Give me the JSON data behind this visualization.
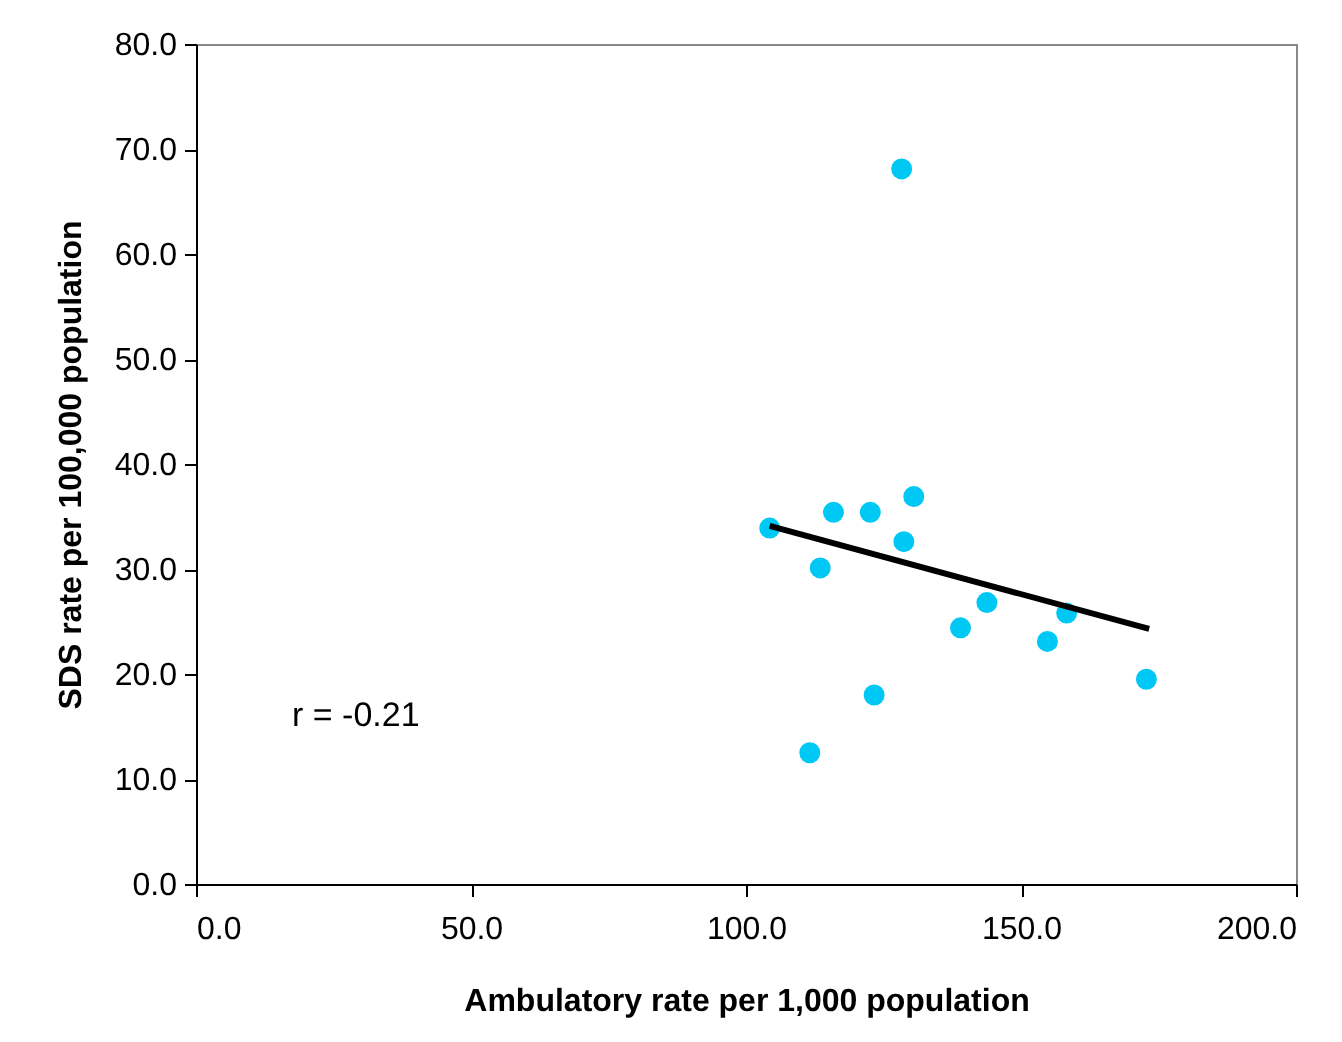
{
  "chart_data": {
    "type": "scatter",
    "xlabel": "Ambulatory rate per 1,000 population",
    "ylabel": "SDS rate per 100,000 population",
    "x": [
      104.3,
      115.9,
      122.6,
      130.5,
      128.7,
      113.5,
      143.8,
      139.0,
      158.3,
      154.8,
      172.8,
      123.3,
      111.6,
      128.3
    ],
    "series": [
      {
        "color": "#00c8f5",
        "marker": "circle",
        "values": [
          33.9,
          35.4,
          35.4,
          36.9,
          32.6,
          30.1,
          26.8,
          24.4,
          25.8,
          23.1,
          19.5,
          18.0,
          12.5,
          68.1
        ]
      },
      {
        "type": "line",
        "color": "#000000",
        "marker": "none",
        "x": [
          104.3,
          173.3
        ],
        "values": [
          34.1,
          24.3
        ]
      }
    ],
    "xlim": [
      0,
      200
    ],
    "xticks": [
      {
        "value": 0,
        "label": "0.0"
      },
      {
        "value": 50,
        "label": "50.0"
      },
      {
        "value": 100,
        "label": "100.0"
      },
      {
        "value": 150,
        "label": "150.0"
      },
      {
        "value": 200,
        "label": "200.0"
      }
    ],
    "ylim": [
      0,
      80
    ],
    "yticks": [
      {
        "value": 0,
        "label": "0.0"
      },
      {
        "value": 10,
        "label": "10.0"
      },
      {
        "value": 20,
        "label": "20.0"
      },
      {
        "value": 30,
        "label": "30.0"
      },
      {
        "value": 40,
        "label": "40.0"
      },
      {
        "value": 50,
        "label": "50.0"
      },
      {
        "value": 60,
        "label": "60.0"
      },
      {
        "value": 70,
        "label": "70.0"
      },
      {
        "value": 80,
        "label": "80.0"
      }
    ],
    "annotations": [
      "r = -0.21"
    ],
    "grid": false
  }
}
